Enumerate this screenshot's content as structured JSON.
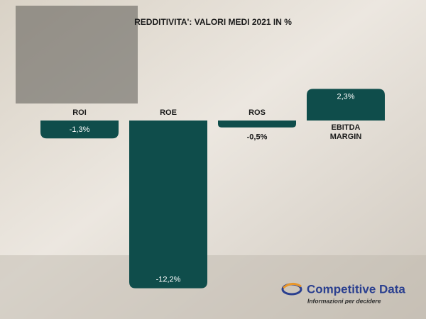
{
  "chart_data": {
    "type": "bar",
    "title": "REDDITIVITA': VALORI MEDI 2021 IN %",
    "categories": [
      "ROI",
      "ROE",
      "ROS",
      "EBITDA MARGIN"
    ],
    "values": [
      -1.3,
      -12.2,
      -0.5,
      2.3
    ],
    "value_labels": [
      "-1,3%",
      "-12,2%",
      "-0,5%",
      "2,3%"
    ],
    "color": "#0f4d4b"
  },
  "logo": {
    "name": "Competitive Data",
    "tagline": "Informazioni per decidere"
  }
}
